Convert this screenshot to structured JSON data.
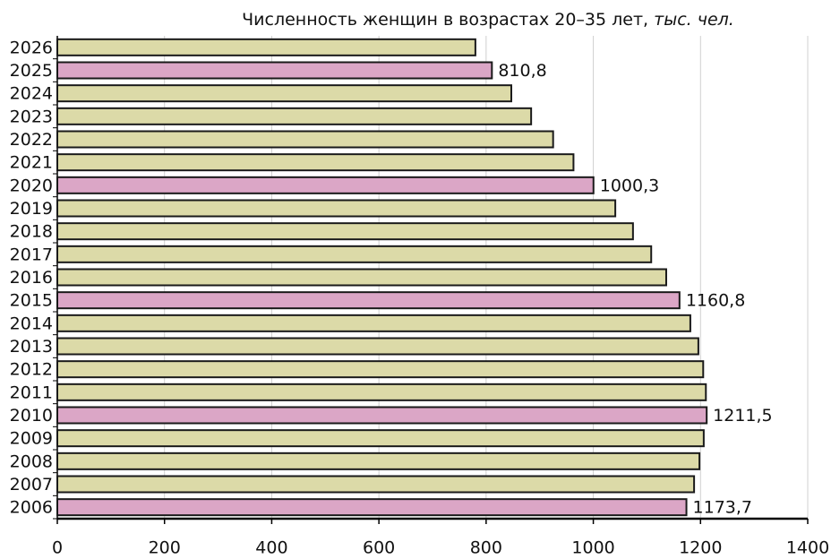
{
  "chart_data": {
    "type": "bar",
    "orientation": "horizontal",
    "title": "Численность женщин в возрастах 20–35 лет,",
    "title_unit": "тыс. чел.",
    "categories": [
      "2006",
      "2007",
      "2008",
      "2009",
      "2010",
      "2011",
      "2012",
      "2013",
      "2014",
      "2015",
      "2016",
      "2017",
      "2018",
      "2019",
      "2020",
      "2021",
      "2022",
      "2023",
      "2024",
      "2025",
      "2026"
    ],
    "values": [
      1173.7,
      1188,
      1198,
      1206,
      1211.5,
      1210,
      1205,
      1196,
      1181,
      1160.8,
      1136,
      1108,
      1074,
      1041,
      1000.3,
      963,
      925,
      884,
      847,
      810.8,
      780
    ],
    "value_labels": [
      "1173,7",
      null,
      null,
      null,
      "1211,5",
      null,
      null,
      null,
      null,
      "1160,8",
      null,
      null,
      null,
      null,
      "1000,3",
      null,
      null,
      null,
      null,
      "810,8",
      null
    ],
    "colors": [
      "#dba6c6",
      "#dcdaa8",
      "#dcdaa8",
      "#dcdaa8",
      "#dba6c6",
      "#dcdaa8",
      "#dcdaa8",
      "#dcdaa8",
      "#dcdaa8",
      "#dba6c6",
      "#dcdaa8",
      "#dcdaa8",
      "#dcdaa8",
      "#dcdaa8",
      "#dba6c6",
      "#dcdaa8",
      "#dcdaa8",
      "#dcdaa8",
      "#dcdaa8",
      "#dba6c6",
      "#dcdaa8"
    ],
    "xlim": [
      0,
      1400
    ],
    "xticks": [
      0,
      200,
      400,
      600,
      800,
      1000,
      1200,
      1400
    ],
    "grid": true
  }
}
